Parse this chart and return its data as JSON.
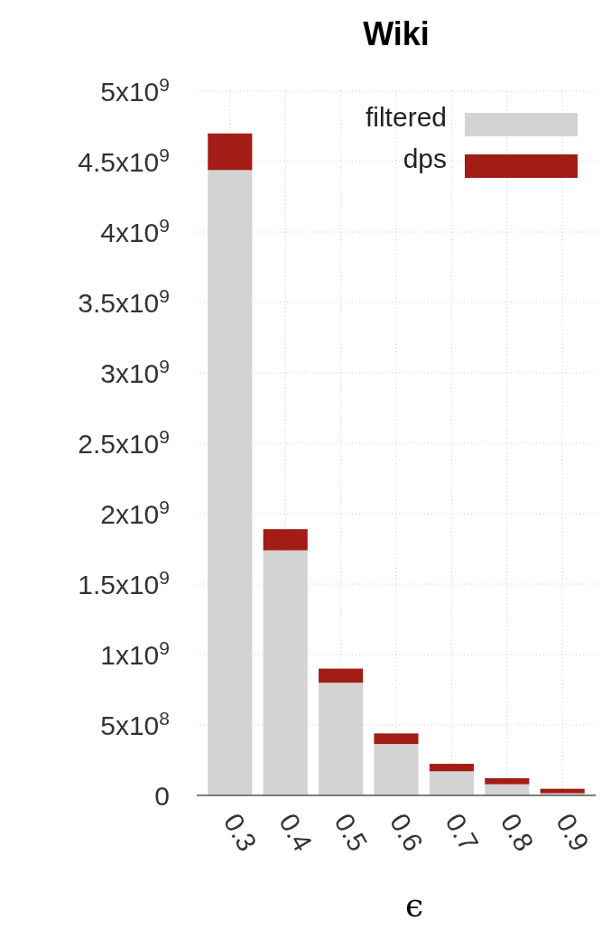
{
  "chart_data": {
    "type": "bar",
    "title": "Wiki",
    "xlabel": "ϵ",
    "categories": [
      "0.3",
      "0.4",
      "0.5",
      "0.6",
      "0.7",
      "0.8",
      "0.9"
    ],
    "stacked": true,
    "series": [
      {
        "name": "filtered",
        "color": "#d3d3d3",
        "values": [
          4440000000.0,
          1740000000.0,
          800000000.0,
          365000000.0,
          171000000.0,
          79000000.0,
          15000000.0
        ]
      },
      {
        "name": "dps",
        "color": "#a31c15",
        "values": [
          260000000.0,
          150000000.0,
          100000000.0,
          75000000.0,
          53000000.0,
          43000000.0,
          32000000.0
        ]
      }
    ],
    "ylim": [
      0,
      5000000000.0
    ],
    "yticks": [
      0,
      {
        "value": 500000000.0,
        "label": "5x10$^{8}$"
      },
      {
        "value": 1000000000.0,
        "label": "1x10$^{9}$"
      },
      {
        "value": 1500000000.0,
        "label": "1.5x10$^{9}$"
      },
      {
        "value": 2000000000.0,
        "label": "2x10$^{9}$"
      },
      {
        "value": 2500000000.0,
        "label": "2.5x10$^{9}$"
      },
      {
        "value": 3000000000.0,
        "label": "3x10$^{9}$"
      },
      {
        "value": 3500000000.0,
        "label": "3.5x10$^{9}$"
      },
      {
        "value": 4000000000.0,
        "label": "4x10$^{9}$"
      },
      {
        "value": 4500000000.0,
        "label": "4.5x10$^{9}$"
      },
      {
        "value": 5000000000.0,
        "label": "5x10$^{9}$"
      }
    ],
    "grid": true,
    "legend": "top right"
  }
}
